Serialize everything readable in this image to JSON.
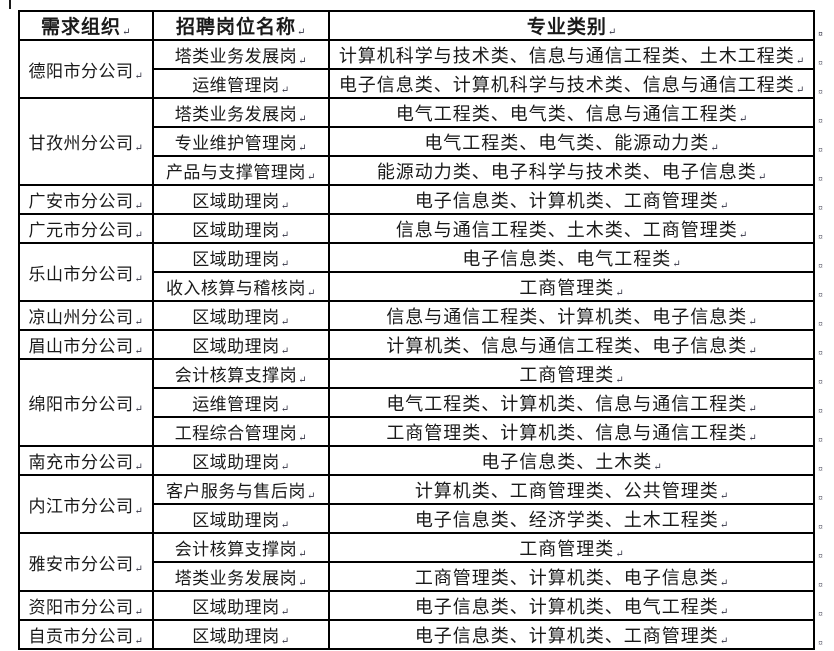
{
  "marks": {
    "cell_end": "↵",
    "row_end": "¤"
  },
  "colors": {
    "border": "#000000",
    "text": "#1a1a1a",
    "background": "#ffffff"
  },
  "table": {
    "headers": [
      "需求组织",
      "招聘岗位名称",
      "专业类别"
    ],
    "groups": [
      {
        "org": "德阳市分公司",
        "rows": [
          {
            "position": "塔类业务发展岗",
            "majors": "计算机科学与技术类、信息与通信工程类、土木工程类"
          },
          {
            "position": "运维管理岗",
            "majors": "电子信息类、计算机科学与技术类、信息与通信工程类"
          }
        ]
      },
      {
        "org": "甘孜州分公司",
        "rows": [
          {
            "position": "塔类业务发展岗",
            "majors": "电气工程类、电气类、信息与通信工程类"
          },
          {
            "position": "专业维护管理岗",
            "majors": "电气工程类、电气类、能源动力类"
          },
          {
            "position": "产品与支撑管理岗",
            "majors": "能源动力类、电子科学与技术类、电子信息类"
          }
        ]
      },
      {
        "org": "广安市分公司",
        "rows": [
          {
            "position": "区域助理岗",
            "majors": "电子信息类、计算机类、工商管理类"
          }
        ]
      },
      {
        "org": "广元市分公司",
        "rows": [
          {
            "position": "区域助理岗",
            "majors": "信息与通信工程类、土木类、工商管理类"
          }
        ]
      },
      {
        "org": "乐山市分公司",
        "rows": [
          {
            "position": "区域助理岗",
            "majors": "电子信息类、电气工程类"
          },
          {
            "position": "收入核算与稽核岗",
            "majors": "工商管理类"
          }
        ]
      },
      {
        "org": "凉山州分公司",
        "rows": [
          {
            "position": "区域助理岗",
            "majors": "信息与通信工程类、计算机类、电子信息类"
          }
        ]
      },
      {
        "org": "眉山市分公司",
        "rows": [
          {
            "position": "区域助理岗",
            "majors": "计算机类、信息与通信工程类、电子信息类"
          }
        ]
      },
      {
        "org": "绵阳市分公司",
        "rows": [
          {
            "position": "会计核算支撑岗",
            "majors": "工商管理类"
          },
          {
            "position": "运维管理岗",
            "majors": "电气工程类、计算机类、信息与通信工程类"
          },
          {
            "position": "工程综合管理岗",
            "majors": "工商管理类、计算机类、信息与通信工程类"
          }
        ]
      },
      {
        "org": "南充市分公司",
        "rows": [
          {
            "position": "区域助理岗",
            "majors": "电子信息类、土木类"
          }
        ]
      },
      {
        "org": "内江市分公司",
        "rows": [
          {
            "position": "客户服务与售后岗",
            "majors": "计算机类、工商管理类、公共管理类"
          },
          {
            "position": "区域助理岗",
            "majors": "电子信息类、经济学类、土木工程类"
          }
        ]
      },
      {
        "org": "雅安市分公司",
        "rows": [
          {
            "position": "会计核算支撑岗",
            "majors": "工商管理类"
          },
          {
            "position": "塔类业务发展岗",
            "majors": "工商管理类、计算机类、电子信息类"
          }
        ]
      },
      {
        "org": "资阳市分公司",
        "rows": [
          {
            "position": "区域助理岗",
            "majors": "电子信息类、计算机类、电气工程类"
          }
        ]
      },
      {
        "org": "自贡市分公司",
        "rows": [
          {
            "position": "区域助理岗",
            "majors": "电子信息类、计算机类、工商管理类"
          }
        ]
      }
    ]
  }
}
